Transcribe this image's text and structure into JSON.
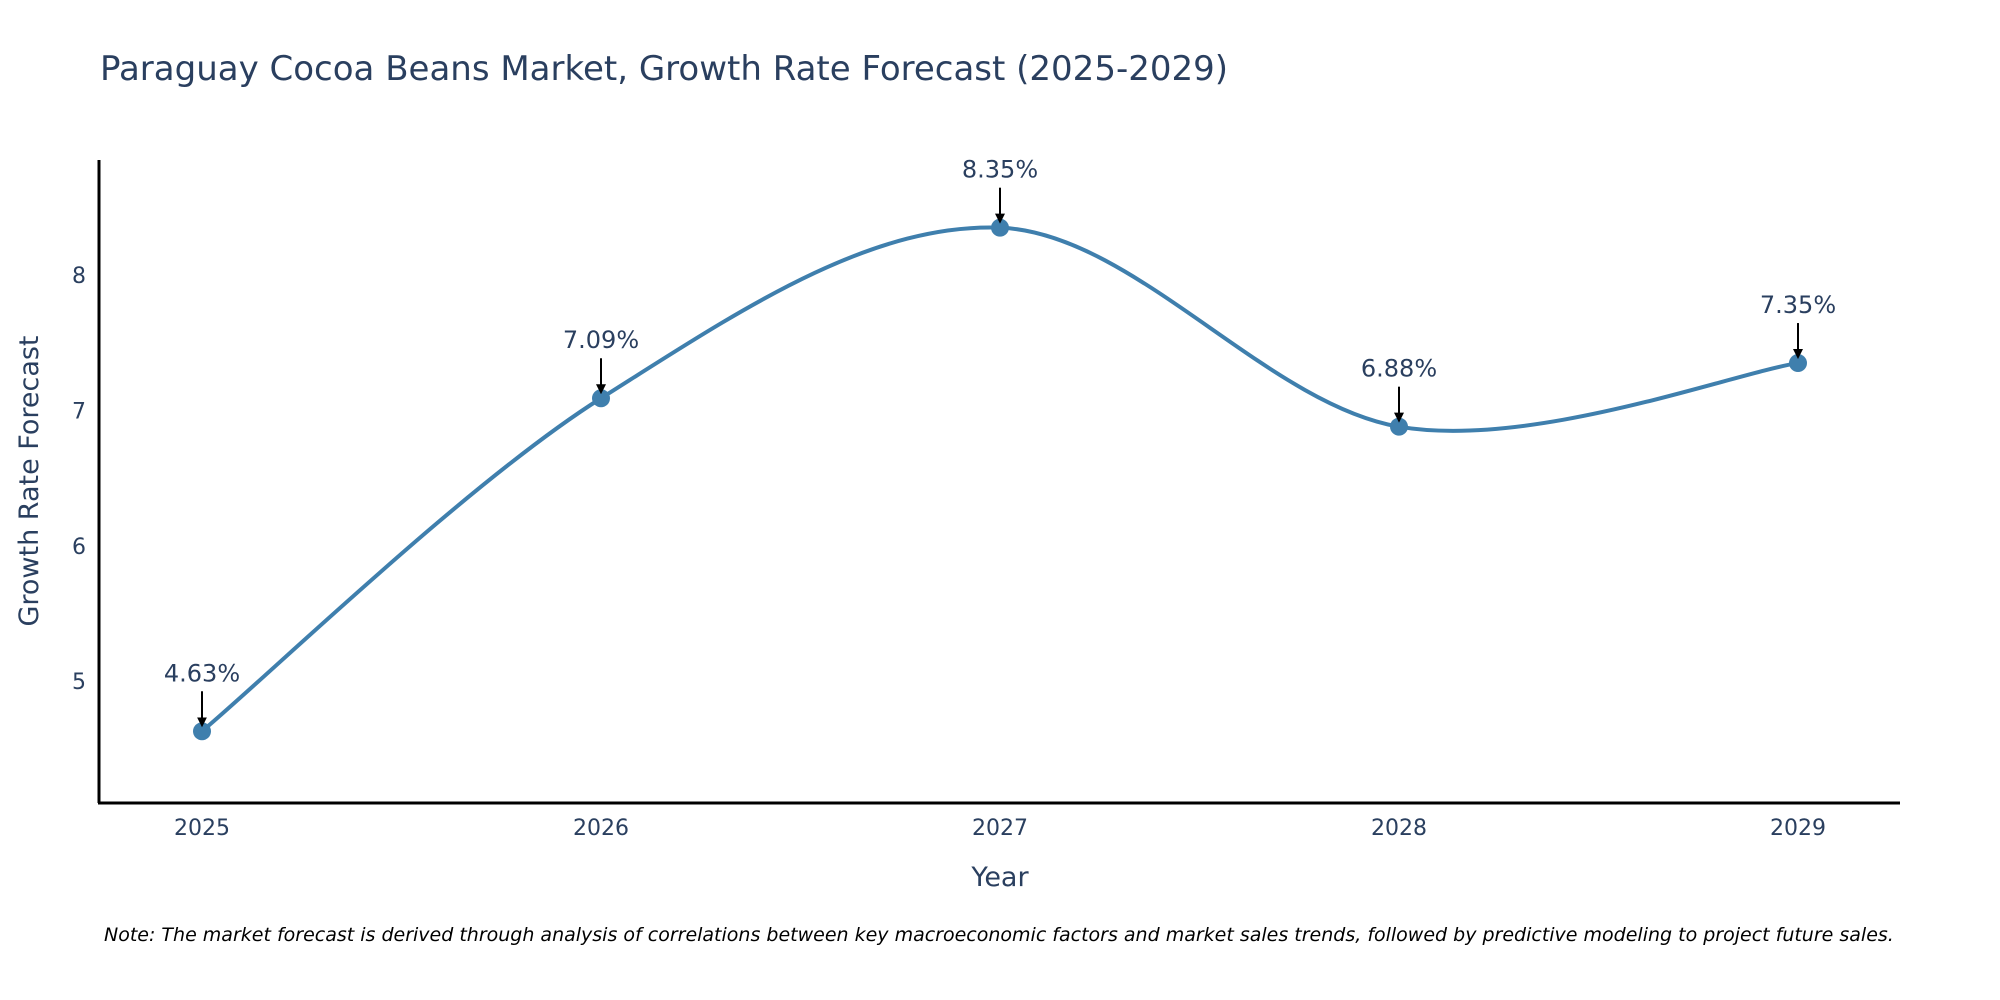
{
  "chart_data": {
    "type": "line",
    "title": "Paraguay Cocoa Beans Market, Growth Rate Forecast (2025-2029)",
    "xlabel": "Year",
    "ylabel": "Growth Rate Forecast",
    "categories": [
      "2025",
      "2026",
      "2027",
      "2028",
      "2029"
    ],
    "series": [
      {
        "name": "Growth Rate Forecast",
        "values": [
          4.63,
          7.09,
          8.35,
          6.88,
          7.35
        ],
        "labels": [
          "4.63%",
          "7.09%",
          "8.35%",
          "6.88%",
          "7.35%"
        ]
      }
    ],
    "yticks": [
      "5",
      "6",
      "7",
      "8"
    ],
    "ylim": [
      4.1,
      8.85
    ],
    "grid": false,
    "line_color": "#3f7fad",
    "marker_color": "#3f7fad",
    "arrow_color": "#000000",
    "note": "Note: The market forecast is derived through analysis of correlations between key macroeconomic factors and market sales trends, followed by predictive modeling to project future sales."
  }
}
